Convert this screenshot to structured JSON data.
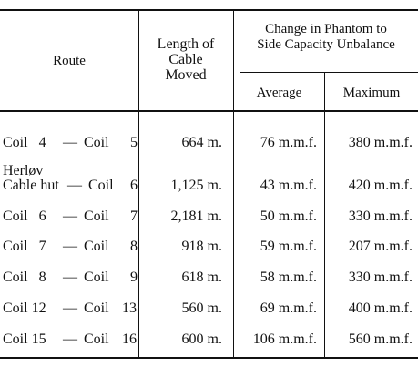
{
  "table": {
    "headers": {
      "route": "Route",
      "length": [
        "Length of",
        "Cable",
        "Moved"
      ],
      "change": [
        "Change in Phantom to",
        "Side Capacity Unbalance"
      ],
      "average": "Average",
      "maximum": "Maximum"
    },
    "rows": [
      {
        "route_line1": "",
        "route_from": "Coil   4",
        "route_sep": "—",
        "route_to": "Coil",
        "route_num": "5",
        "length": "664 m.",
        "average": "76 m.m.f.",
        "maximum": "380 m.m.f."
      },
      {
        "route_line1": "Herløv",
        "route_from": "Cable hut",
        "route_sep": "—",
        "route_to": "Coil",
        "route_num": "6",
        "length": "1,125 m.",
        "average": "43 m.m.f.",
        "maximum": "420 m.m.f."
      },
      {
        "route_line1": "",
        "route_from": "Coil   6",
        "route_sep": "—",
        "route_to": "Coil",
        "route_num": "7",
        "length": "2,181 m.",
        "average": "50 m.m.f.",
        "maximum": "330 m.m.f."
      },
      {
        "route_line1": "",
        "route_from": "Coil   7",
        "route_sep": "—",
        "route_to": "Coil",
        "route_num": "8",
        "length": "918 m.",
        "average": "59 m.m.f.",
        "maximum": "207 m.m.f."
      },
      {
        "route_line1": "",
        "route_from": "Coil   8",
        "route_sep": "—",
        "route_to": "Coil",
        "route_num": "9",
        "length": "618 m.",
        "average": "58 m.m.f.",
        "maximum": "330 m.m.f."
      },
      {
        "route_line1": "",
        "route_from": "Coil 12",
        "route_sep": "—",
        "route_to": "Coil",
        "route_num": "13",
        "length": "560 m.",
        "average": "69 m.m.f.",
        "maximum": "400 m.m.f."
      },
      {
        "route_line1": "",
        "route_from": "Coil 15",
        "route_sep": "—",
        "route_to": "Coil",
        "route_num": "16",
        "length": "600 m.",
        "average": "106 m.m.f.",
        "maximum": "560 m.m.f."
      }
    ]
  }
}
